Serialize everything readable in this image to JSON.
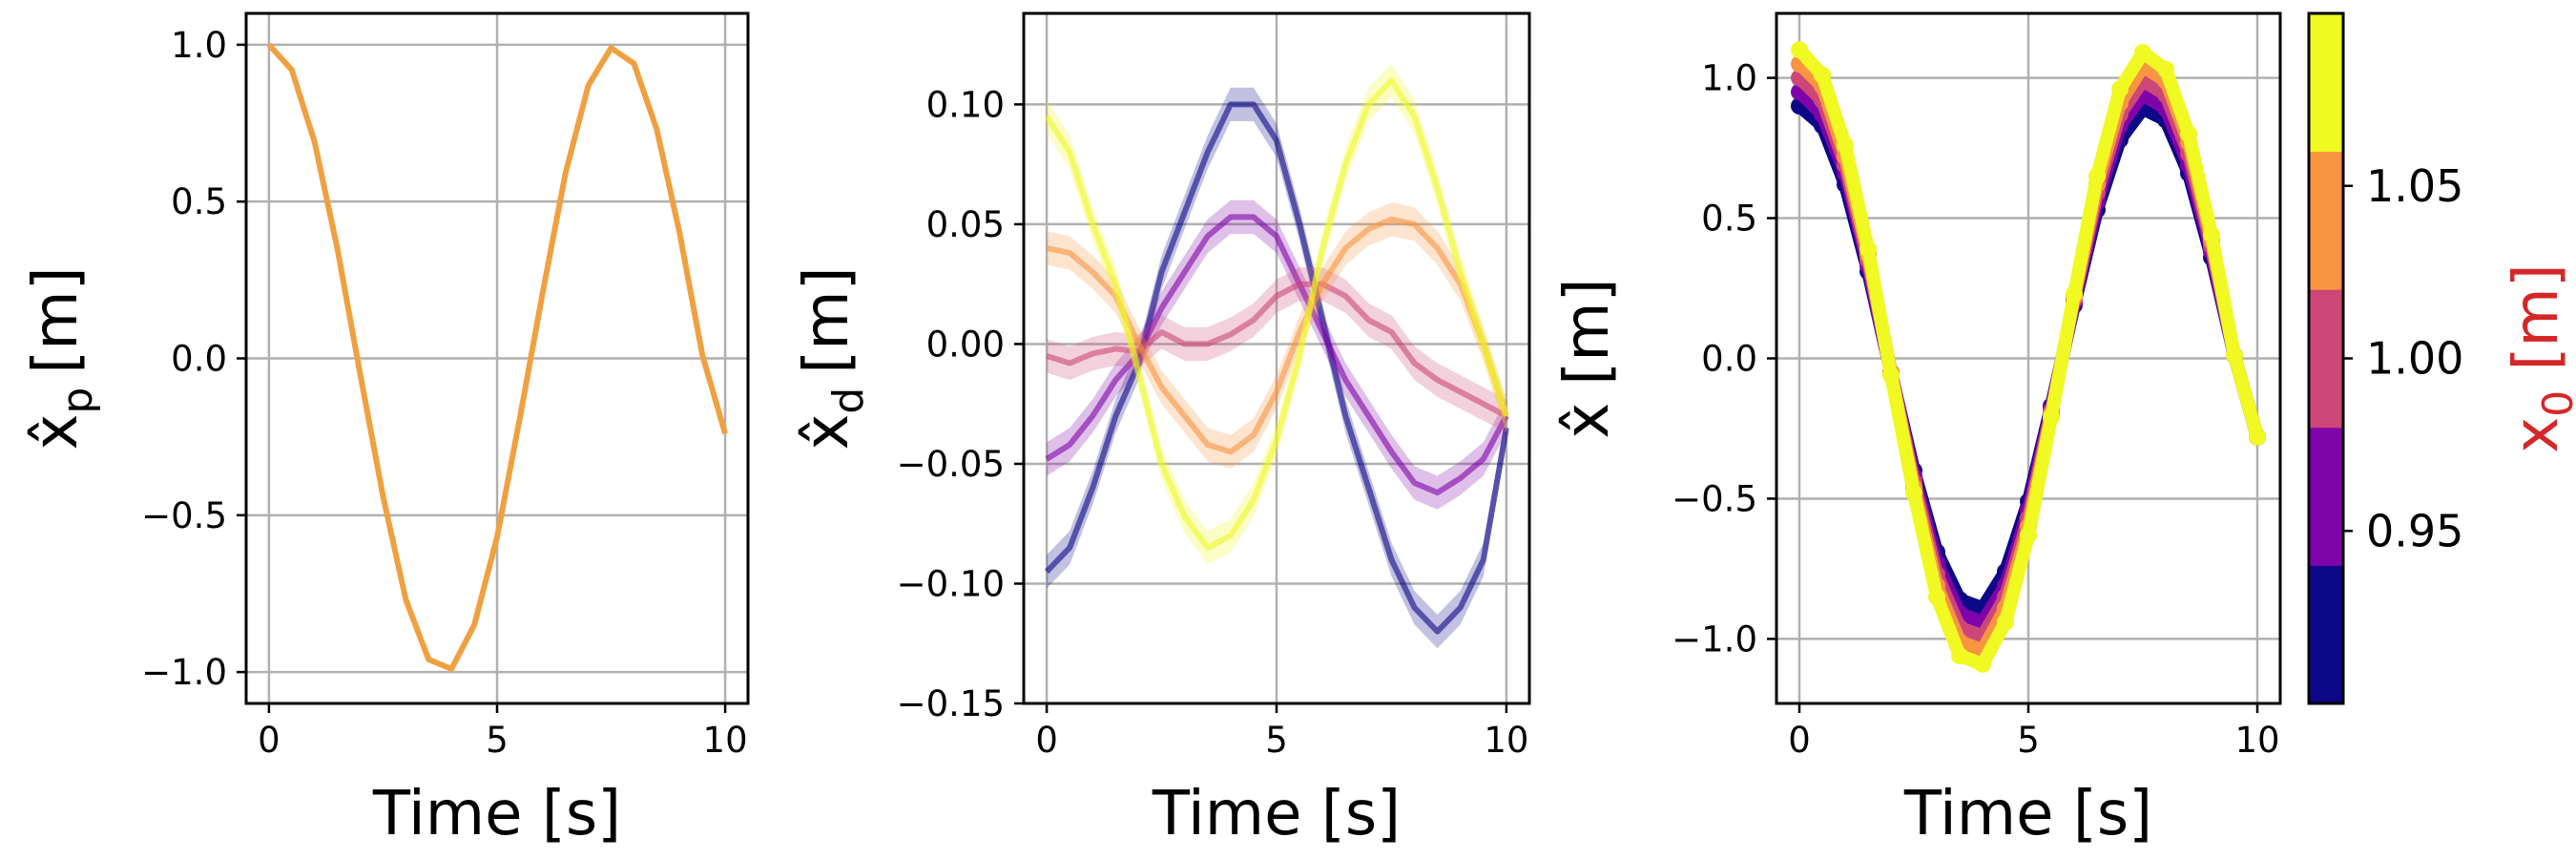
{
  "colors": {
    "series": [
      "#0d0887",
      "#7e03a8",
      "#cc4778",
      "#f89540",
      "#f0f921"
    ],
    "xp_line": "#f0a040",
    "grid": "#b0b0b0",
    "colorbar_label_accent": "#d62728"
  },
  "colorbar": {
    "label_main": "x",
    "label_sub": "0",
    "label_unit": " [m]",
    "bounds": [
      0.9,
      1.1
    ],
    "ticks": [
      "0.95",
      "1.00",
      "1.05"
    ],
    "tick_values": [
      0.95,
      1.0,
      1.05
    ],
    "colors": [
      "#0d0887",
      "#7e03a8",
      "#cc4778",
      "#f89540",
      "#f0f921"
    ]
  },
  "chart_data": [
    {
      "type": "line",
      "ylabel_main": "x̂",
      "ylabel_sub": "p",
      "ylabel_unit": "[m]",
      "xlabel": "Time [s]",
      "xlim": [
        -0.5,
        10.5
      ],
      "ylim": [
        -1.1,
        1.1
      ],
      "xticks": [
        0,
        5,
        10
      ],
      "xtick_labels": [
        "0",
        "5",
        "10"
      ],
      "yticks": [
        -1.0,
        -0.5,
        0.0,
        0.5,
        1.0
      ],
      "ytick_labels": [
        "−1.0",
        "−0.5",
        "0.0",
        "0.5",
        "1.0"
      ],
      "grid": true,
      "x": [
        0,
        0.5,
        1,
        1.5,
        2,
        2.5,
        3,
        3.5,
        4,
        4.5,
        5,
        5.5,
        6,
        6.5,
        7,
        7.5,
        8,
        8.5,
        9,
        9.5,
        10
      ],
      "series": [
        {
          "values": [
            1.0,
            0.92,
            0.69,
            0.35,
            -0.05,
            -0.44,
            -0.77,
            -0.96,
            -0.99,
            -0.85,
            -0.57,
            -0.19,
            0.21,
            0.59,
            0.87,
            0.99,
            0.94,
            0.73,
            0.4,
            0.01,
            -0.24
          ]
        }
      ]
    },
    {
      "type": "line",
      "ylabel_main": "x̂",
      "ylabel_sub": "d",
      "ylabel_unit": "[m]",
      "xlabel": "Time [s]",
      "xlim": [
        -0.5,
        10.5
      ],
      "ylim": [
        -0.15,
        0.138
      ],
      "xticks": [
        0,
        5,
        10
      ],
      "xtick_labels": [
        "0",
        "5",
        "10"
      ],
      "yticks": [
        -0.15,
        -0.1,
        -0.05,
        0.0,
        0.05,
        0.1
      ],
      "ytick_labels": [
        "−0.15",
        "−0.10",
        "−0.05",
        "0.00",
        "0.05",
        "0.10"
      ],
      "grid": true,
      "band_halfwidth": 0.007,
      "x": [
        0,
        0.5,
        1,
        1.5,
        2,
        2.5,
        3,
        3.5,
        4,
        4.5,
        5,
        5.5,
        6,
        6.5,
        7,
        7.5,
        8,
        8.5,
        9,
        9.5,
        10
      ],
      "series": [
        {
          "values": [
            -0.095,
            -0.085,
            -0.06,
            -0.03,
            -0.008,
            0.03,
            0.055,
            0.08,
            0.1,
            0.1,
            0.085,
            0.05,
            0.01,
            -0.03,
            -0.06,
            -0.09,
            -0.11,
            -0.12,
            -0.11,
            -0.09,
            -0.035
          ]
        },
        {
          "values": [
            -0.048,
            -0.042,
            -0.03,
            -0.015,
            -0.004,
            0.015,
            0.03,
            0.045,
            0.053,
            0.053,
            0.045,
            0.025,
            0.005,
            -0.015,
            -0.03,
            -0.045,
            -0.058,
            -0.062,
            -0.056,
            -0.048,
            -0.03
          ]
        },
        {
          "values": [
            -0.005,
            -0.008,
            -0.004,
            -0.002,
            -0.003,
            0.005,
            0.0,
            0.0,
            0.004,
            0.01,
            0.02,
            0.025,
            0.025,
            0.02,
            0.01,
            0.005,
            -0.008,
            -0.015,
            -0.02,
            -0.025,
            -0.03
          ]
        },
        {
          "values": [
            0.04,
            0.038,
            0.03,
            0.02,
            0.0,
            -0.018,
            -0.03,
            -0.042,
            -0.045,
            -0.038,
            -0.02,
            0.005,
            0.025,
            0.04,
            0.048,
            0.052,
            0.05,
            0.04,
            0.025,
            0.0,
            -0.03
          ]
        },
        {
          "values": [
            0.095,
            0.08,
            0.05,
            0.025,
            -0.012,
            -0.05,
            -0.072,
            -0.085,
            -0.08,
            -0.065,
            -0.04,
            -0.005,
            0.04,
            0.075,
            0.1,
            0.11,
            0.095,
            0.065,
            0.03,
            0.0,
            -0.03
          ]
        }
      ]
    },
    {
      "type": "scatter",
      "ylabel_main": "x̂",
      "ylabel_sub": "",
      "ylabel_unit": "[m]",
      "xlabel": "Time [s]",
      "xlim": [
        -0.5,
        10.5
      ],
      "ylim": [
        -1.23,
        1.23
      ],
      "xticks": [
        0,
        5,
        10
      ],
      "xtick_labels": [
        "0",
        "5",
        "10"
      ],
      "yticks": [
        -1.0,
        -0.5,
        0.0,
        0.5,
        1.0
      ],
      "ytick_labels": [
        "−1.0",
        "−0.5",
        "0.0",
        "0.5",
        "1.0"
      ],
      "grid": true,
      "x": [
        0,
        0.5,
        1,
        1.5,
        2,
        2.5,
        3,
        3.5,
        4,
        4.5,
        5,
        5.5,
        6,
        6.5,
        7,
        7.5,
        8,
        8.5,
        9,
        9.5,
        10
      ],
      "series": [
        {
          "values": [
            0.9,
            0.83,
            0.62,
            0.31,
            -0.05,
            -0.4,
            -0.69,
            -0.86,
            -0.89,
            -0.76,
            -0.51,
            -0.17,
            0.19,
            0.53,
            0.78,
            0.89,
            0.85,
            0.66,
            0.36,
            0.01,
            -0.28
          ]
        },
        {
          "values": [
            0.95,
            0.87,
            0.66,
            0.33,
            -0.05,
            -0.42,
            -0.73,
            -0.91,
            -0.94,
            -0.81,
            -0.54,
            -0.18,
            0.2,
            0.56,
            0.83,
            0.94,
            0.89,
            0.69,
            0.38,
            0.01,
            -0.28
          ]
        },
        {
          "values": [
            1.0,
            0.92,
            0.69,
            0.35,
            -0.05,
            -0.44,
            -0.77,
            -0.96,
            -0.99,
            -0.85,
            -0.57,
            -0.19,
            0.21,
            0.59,
            0.87,
            0.99,
            0.94,
            0.73,
            0.4,
            0.01,
            -0.28
          ]
        },
        {
          "values": [
            1.05,
            0.97,
            0.72,
            0.37,
            -0.05,
            -0.46,
            -0.81,
            -1.01,
            -1.04,
            -0.89,
            -0.6,
            -0.2,
            0.22,
            0.62,
            0.91,
            1.04,
            0.99,
            0.77,
            0.42,
            0.01,
            -0.28
          ]
        },
        {
          "values": [
            1.1,
            1.01,
            0.76,
            0.39,
            -0.06,
            -0.48,
            -0.85,
            -1.06,
            -1.09,
            -0.94,
            -0.63,
            -0.21,
            0.23,
            0.65,
            0.96,
            1.09,
            1.03,
            0.8,
            0.44,
            0.01,
            -0.28
          ]
        }
      ]
    }
  ]
}
